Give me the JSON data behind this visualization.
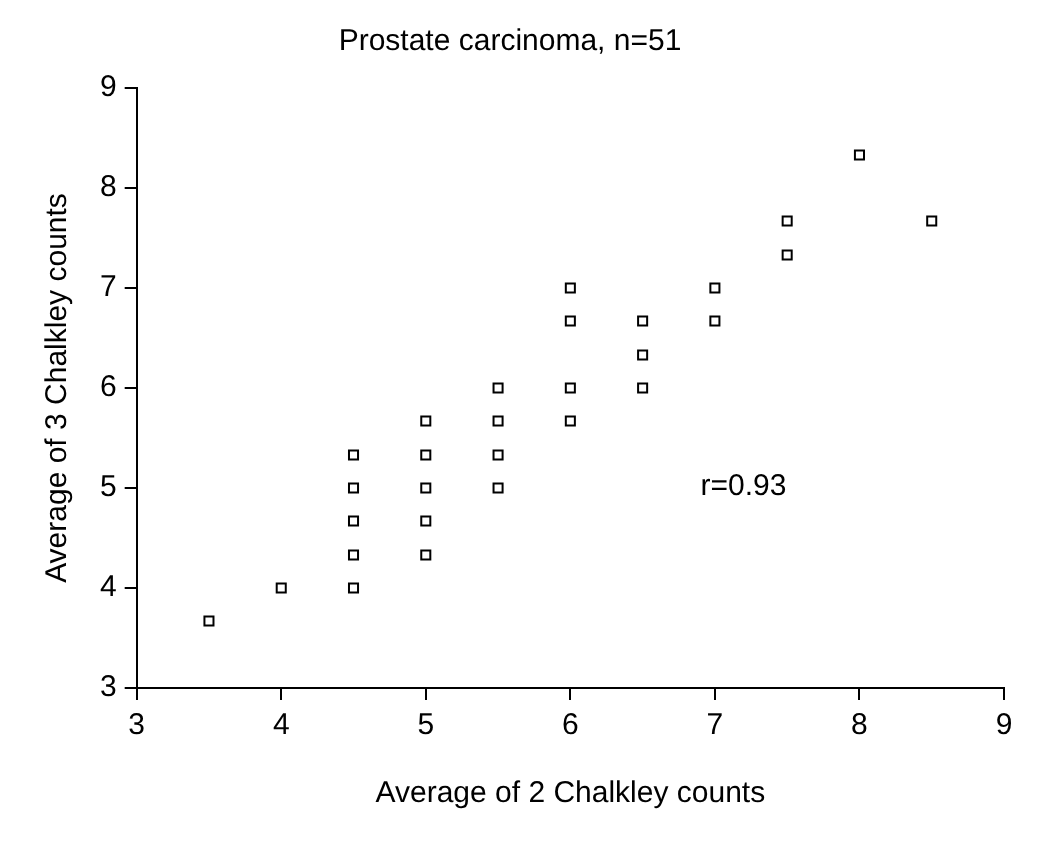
{
  "chart_data": {
    "type": "scatter",
    "title": "Prostate carcinoma, n=51",
    "xlabel": "Average of 2 Chalkley counts",
    "ylabel": "Average of 3 Chalkley counts",
    "xlim": [
      3,
      9
    ],
    "xticks": [
      3,
      4,
      5,
      6,
      7,
      8,
      9
    ],
    "ylim": [
      3,
      9
    ],
    "yticks": [
      3,
      4,
      5,
      6,
      7,
      8,
      9
    ],
    "grid": false,
    "legend": false,
    "marker": "square",
    "annotations": [
      "r=0.93"
    ],
    "series": [
      {
        "color": "#000000",
        "x": [
          3.5,
          4,
          4.5,
          4.5,
          4.5,
          4.5,
          4.5,
          5,
          5,
          5,
          5,
          5,
          5.5,
          5.5,
          5.5,
          5.5,
          6,
          6,
          6,
          6,
          6.5,
          6.5,
          6.5,
          7,
          7,
          7.5,
          7.5,
          8,
          8.5
        ],
        "values": [
          3.67,
          4,
          5.33,
          5,
          4.67,
          4.33,
          4,
          5.67,
          5.33,
          5,
          4.67,
          4.33,
          6,
          5.67,
          5.33,
          5,
          7,
          6.67,
          6,
          5.67,
          6.67,
          6.33,
          6,
          7,
          6.67,
          7.67,
          7.33,
          8.33,
          7.67
        ]
      }
    ]
  }
}
